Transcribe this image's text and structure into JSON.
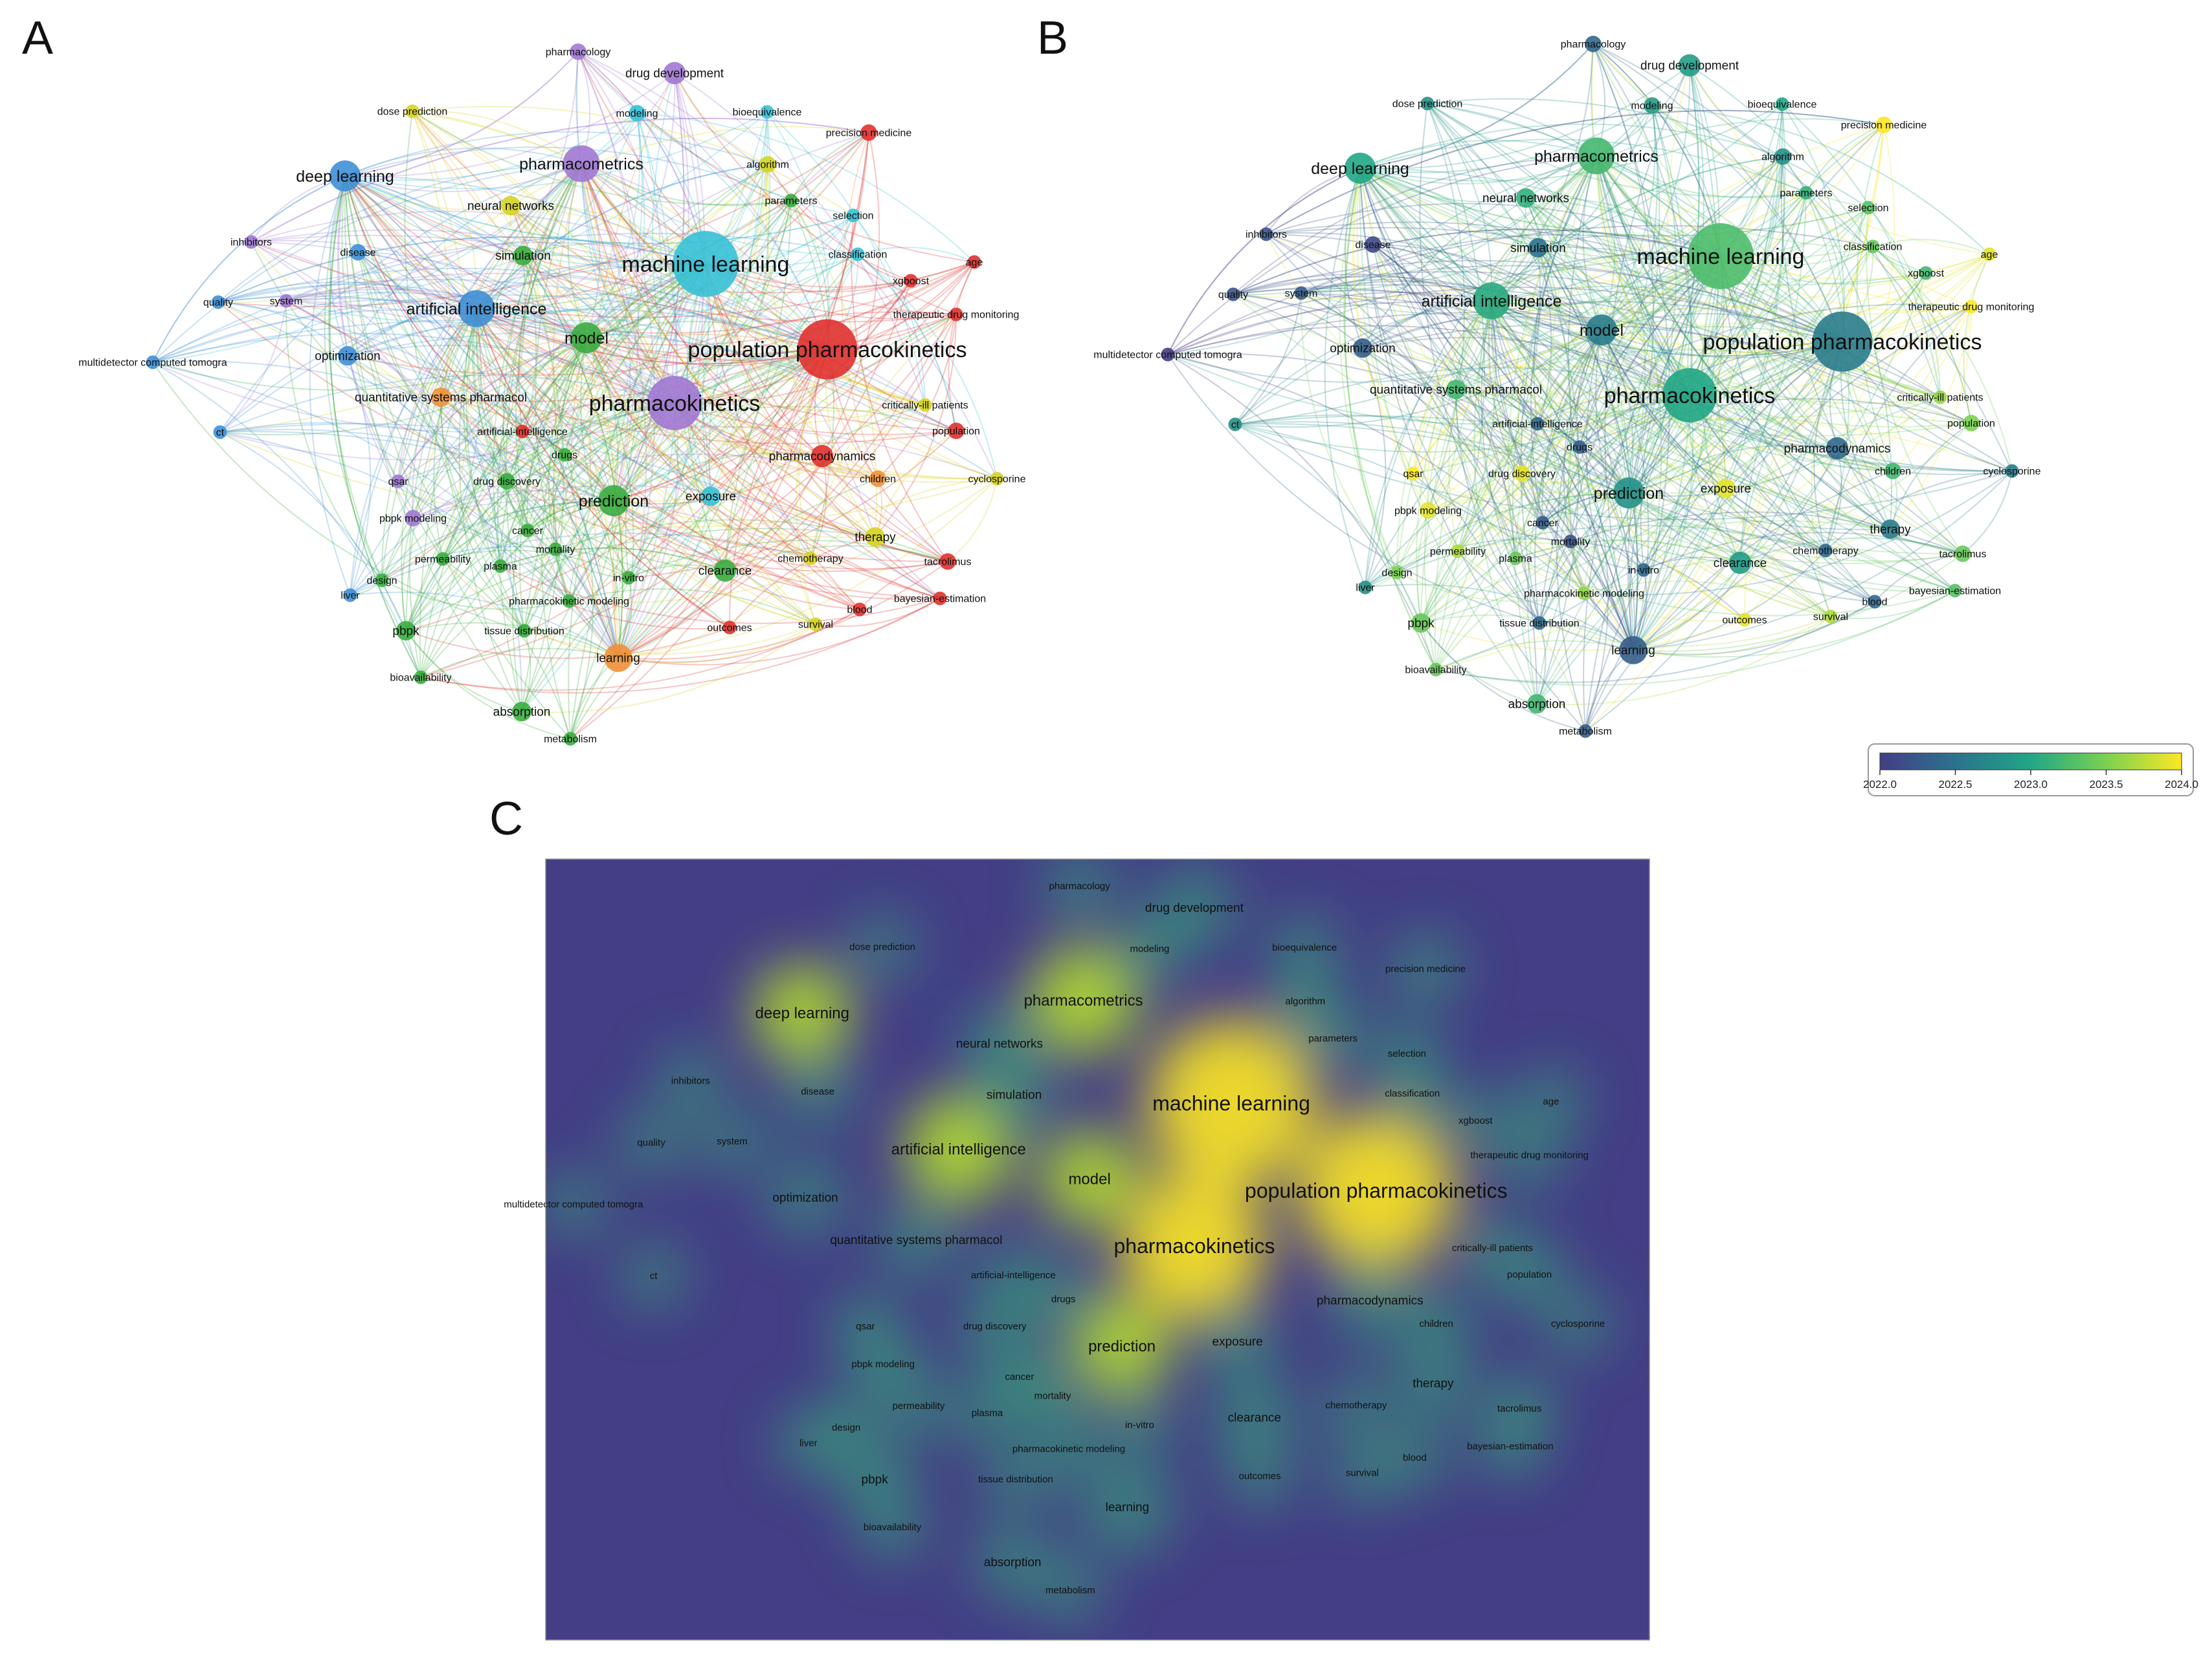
{
  "panels": {
    "a": "A",
    "b": "B",
    "c": "C"
  },
  "colorbar": {
    "ticks": [
      "2022.0",
      "2022.5",
      "2023.0",
      "2023.5",
      "2024.0"
    ],
    "min": 2022.0,
    "max": 2024.0
  },
  "cluster_colors": {
    "red": "#e0312f",
    "green": "#3aad3f",
    "blue": "#3f8fd6",
    "yellow": "#d6d41f",
    "purple": "#a178d4",
    "cyan": "#36c1d6",
    "orange": "#f0913a"
  },
  "nodes": [
    {
      "id": "machine learning",
      "w": 10,
      "c": "cyan",
      "y": 2023.25
    },
    {
      "id": "population pharmacokinetics",
      "w": 9,
      "c": "red",
      "y": 2022.6
    },
    {
      "id": "pharmacokinetics",
      "w": 8,
      "c": "purple",
      "y": 2023.0
    },
    {
      "id": "artificial intelligence",
      "w": 5,
      "c": "blue",
      "y": 2023.05
    },
    {
      "id": "pharmacometrics",
      "w": 5,
      "c": "purple",
      "y": 2023.2
    },
    {
      "id": "deep learning",
      "w": 4,
      "c": "blue",
      "y": 2023.0
    },
    {
      "id": "prediction",
      "w": 4,
      "c": "green",
      "y": 2022.8
    },
    {
      "id": "model",
      "w": 4,
      "c": "green",
      "y": 2022.6
    },
    {
      "id": "learning",
      "w": 3.5,
      "c": "orange",
      "y": 2022.3
    },
    {
      "id": "drug development",
      "w": 2.5,
      "c": "purple",
      "y": 2022.9
    },
    {
      "id": "pharmacology",
      "w": 1.5,
      "c": "purple",
      "y": 2022.4
    },
    {
      "id": "dose prediction",
      "w": 1,
      "c": "yellow",
      "y": 2022.8
    },
    {
      "id": "modeling",
      "w": 1.5,
      "c": "cyan",
      "y": 2022.9
    },
    {
      "id": "bioequivalence",
      "w": 1,
      "c": "cyan",
      "y": 2023.0
    },
    {
      "id": "precision medicine",
      "w": 1.5,
      "c": "red",
      "y": 2024.0
    },
    {
      "id": "algorithm",
      "w": 1.5,
      "c": "yellow",
      "y": 2022.8
    },
    {
      "id": "parameters",
      "w": 1,
      "c": "green",
      "y": 2023.1
    },
    {
      "id": "selection",
      "w": 1,
      "c": "cyan",
      "y": 2023.3
    },
    {
      "id": "neural networks",
      "w": 2,
      "c": "yellow",
      "y": 2023.1
    },
    {
      "id": "inhibitors",
      "w": 1,
      "c": "purple",
      "y": 2022.2
    },
    {
      "id": "disease",
      "w": 1.5,
      "c": "blue",
      "y": 2022.1
    },
    {
      "id": "simulation",
      "w": 2,
      "c": "green",
      "y": 2022.5
    },
    {
      "id": "classification",
      "w": 1,
      "c": "cyan",
      "y": 2023.4
    },
    {
      "id": "xgboost",
      "w": 1,
      "c": "red",
      "y": 2023.2
    },
    {
      "id": "age",
      "w": 1,
      "c": "red",
      "y": 2023.9
    },
    {
      "id": "quality",
      "w": 1,
      "c": "blue",
      "y": 2022.2
    },
    {
      "id": "system",
      "w": 1,
      "c": "purple",
      "y": 2022.3
    },
    {
      "id": "therapeutic drug monitoring",
      "w": 1,
      "c": "red",
      "y": 2024.0
    },
    {
      "id": "multidetector computed tomogra",
      "w": 1,
      "c": "blue",
      "y": 2022.0
    },
    {
      "id": "optimization",
      "w": 2,
      "c": "blue",
      "y": 2022.3
    },
    {
      "id": "quantitative systems pharmacol",
      "w": 2,
      "c": "orange",
      "y": 2023.2
    },
    {
      "id": "critically-ill patients",
      "w": 1,
      "c": "yellow",
      "y": 2023.6
    },
    {
      "id": "artificial-intelligence",
      "w": 1,
      "c": "red",
      "y": 2022.4
    },
    {
      "id": "population",
      "w": 1.5,
      "c": "red",
      "y": 2023.5
    },
    {
      "id": "drugs",
      "w": 1,
      "c": "green",
      "y": 2022.3
    },
    {
      "id": "pharmacodynamics",
      "w": 2.5,
      "c": "red",
      "y": 2022.4
    },
    {
      "id": "qsar",
      "w": 1,
      "c": "purple",
      "y": 2024.0
    },
    {
      "id": "drug discovery",
      "w": 1.5,
      "c": "green",
      "y": 2023.9
    },
    {
      "id": "children",
      "w": 1.5,
      "c": "orange",
      "y": 2023.2
    },
    {
      "id": "cyclosporine",
      "w": 1,
      "c": "yellow",
      "y": 2022.6
    },
    {
      "id": "pbpk modeling",
      "w": 1.5,
      "c": "purple",
      "y": 2023.9
    },
    {
      "id": "exposure",
      "w": 2,
      "c": "cyan",
      "y": 2023.9
    },
    {
      "id": "cancer",
      "w": 1,
      "c": "green",
      "y": 2022.3
    },
    {
      "id": "mortality",
      "w": 1,
      "c": "green",
      "y": 2022.2
    },
    {
      "id": "therapy",
      "w": 2,
      "c": "yellow",
      "y": 2022.6
    },
    {
      "id": "permeability",
      "w": 1,
      "c": "green",
      "y": 2023.7
    },
    {
      "id": "plasma",
      "w": 1,
      "c": "green",
      "y": 2023.4
    },
    {
      "id": "chemotherapy",
      "w": 1,
      "c": "yellow",
      "y": 2022.4
    },
    {
      "id": "tacrolimus",
      "w": 1.5,
      "c": "red",
      "y": 2023.4
    },
    {
      "id": "design",
      "w": 1,
      "c": "green",
      "y": 2023.5
    },
    {
      "id": "in-vitro",
      "w": 1,
      "c": "green",
      "y": 2022.4
    },
    {
      "id": "clearance",
      "w": 2.5,
      "c": "green",
      "y": 2022.9
    },
    {
      "id": "liver",
      "w": 1,
      "c": "blue",
      "y": 2022.8
    },
    {
      "id": "pharmacokinetic modeling",
      "w": 1,
      "c": "green",
      "y": 2023.6
    },
    {
      "id": "bayesian-estimation",
      "w": 1,
      "c": "red",
      "y": 2023.3
    },
    {
      "id": "blood",
      "w": 1,
      "c": "red",
      "y": 2022.4
    },
    {
      "id": "pbpk",
      "w": 2,
      "c": "green",
      "y": 2023.4
    },
    {
      "id": "tissue distribution",
      "w": 1,
      "c": "green",
      "y": 2022.4
    },
    {
      "id": "outcomes",
      "w": 1,
      "c": "red",
      "y": 2023.9
    },
    {
      "id": "survival",
      "w": 1,
      "c": "yellow",
      "y": 2023.7
    },
    {
      "id": "bioavailability",
      "w": 1,
      "c": "green",
      "y": 2023.4
    },
    {
      "id": "absorption",
      "w": 2,
      "c": "green",
      "y": 2023.2
    },
    {
      "id": "metabolism",
      "w": 1,
      "c": "green",
      "y": 2022.3
    }
  ],
  "panel_c_labels": [
    "pharmacology",
    "drug development",
    "dose prediction",
    "modeling",
    "bioequivalence",
    "precision medicine",
    "deep learning",
    "pharmacometrics",
    "algorithm",
    "neural networks",
    "parameters",
    "selection",
    "inhibitors",
    "disease",
    "simulation",
    "machine learning",
    "classification",
    "age",
    "xgboost",
    "quality",
    "system",
    "artificial intelligence",
    "therapeutic drug monitoring",
    "model",
    "multidetector computed tomogra",
    "optimization",
    "population pharmacokinetics",
    "quantitative systems pharmacol",
    "pharmacokinetics",
    "critically-ill patients",
    "ct",
    "artificial-intelligence",
    "population",
    "drugs",
    "pharmacodynamics",
    "qsar",
    "drug discovery",
    "children",
    "cyclosporine",
    "prediction",
    "exposure",
    "pbpk modeling",
    "cancer",
    "therapy",
    "mortality",
    "permeability",
    "plasma",
    "chemotherapy",
    "tacrolimus",
    "design",
    "in-vitro",
    "clearance",
    "liver",
    "pharmacokinetic modeling",
    "blood",
    "bayesian-estimation",
    "pbpk",
    "tissue distribution",
    "outcomes",
    "survival",
    "learning",
    "bioavailability",
    "absorption",
    "metabolism"
  ]
}
